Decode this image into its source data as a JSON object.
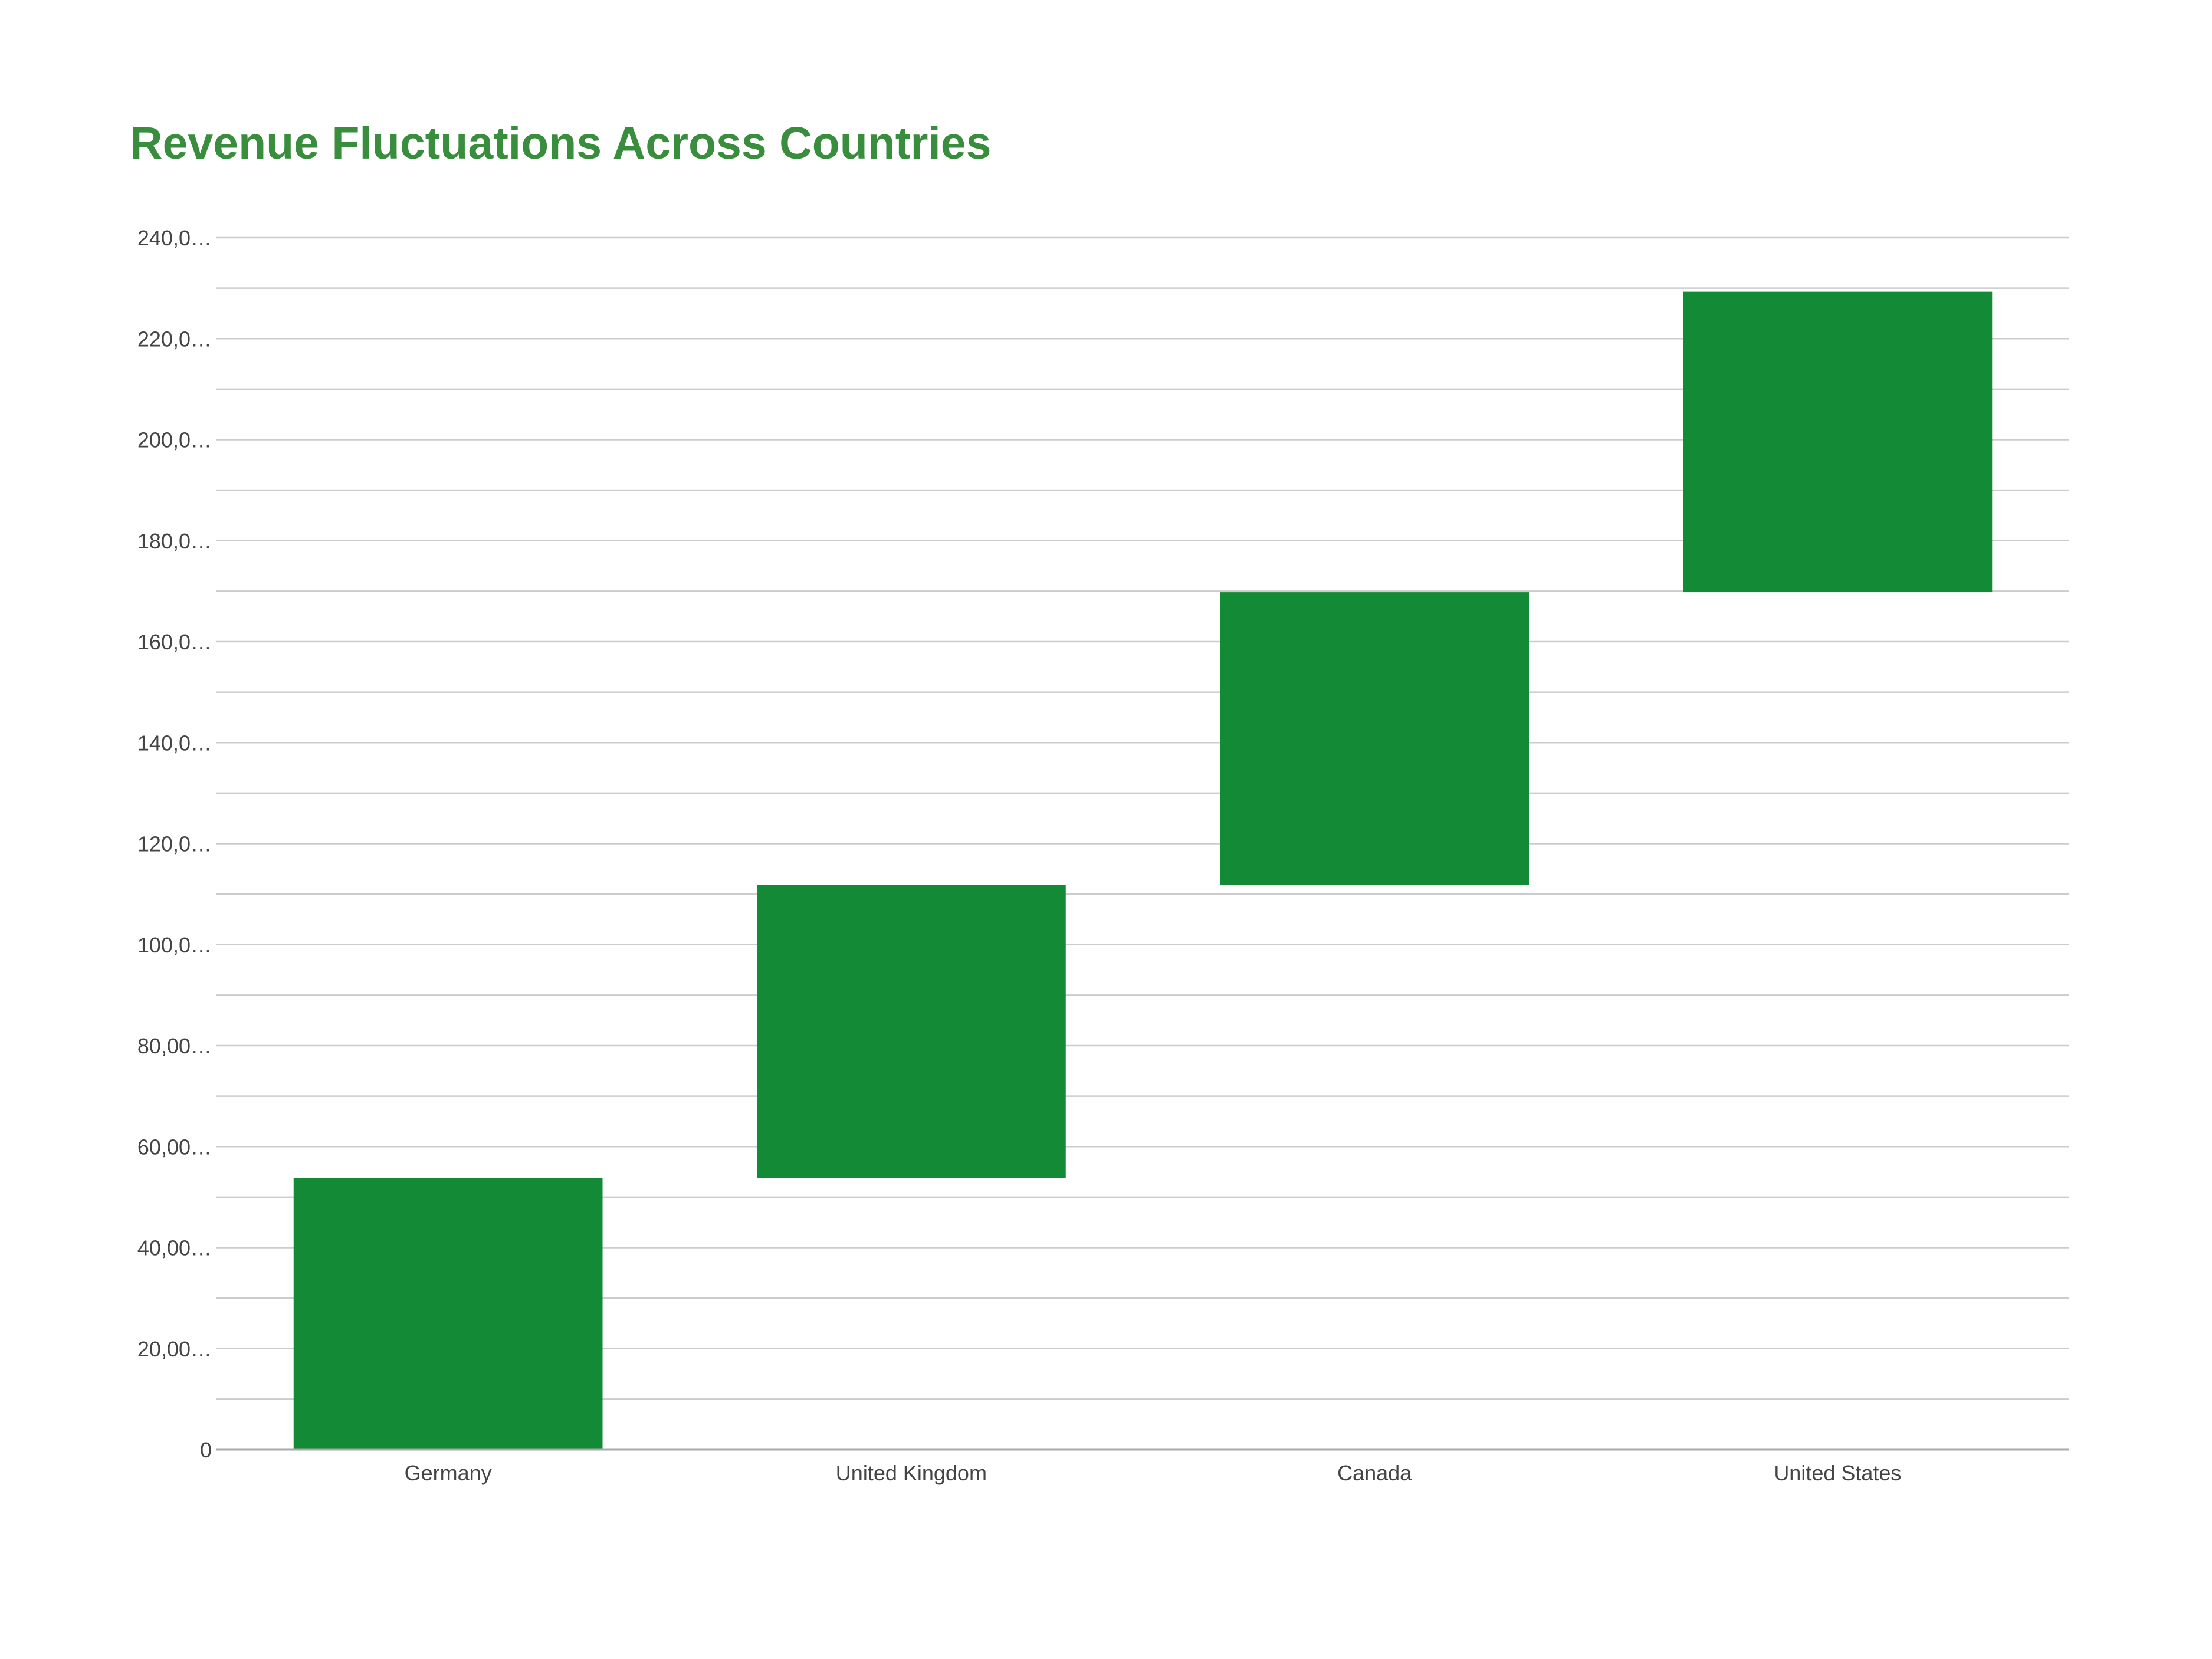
{
  "chart_data": {
    "type": "bar",
    "subtype": "waterfall",
    "title": "Revenue Fluctuations Across Countries",
    "xlabel": "",
    "ylabel": "",
    "categories": [
      "Germany",
      "United Kingdom",
      "Canada",
      "United States"
    ],
    "series": [
      {
        "values": [
          53800,
          58000,
          58000,
          59500
        ],
        "base": [
          0,
          53800,
          111800,
          169800
        ],
        "end": [
          53800,
          111800,
          169800,
          229300
        ]
      }
    ],
    "ylim": [
      0,
      240000
    ],
    "yticks": [
      0,
      20000,
      40000,
      60000,
      80000,
      100000,
      120000,
      140000,
      160000,
      180000,
      200000,
      220000,
      240000
    ],
    "ytick_labels": [
      "0",
      "20,00…",
      "40,00…",
      "60,00…",
      "80,00…",
      "100,0…",
      "120,0…",
      "140,0…",
      "160,0…",
      "180,0…",
      "200,0…",
      "220,0…",
      "240,0…"
    ],
    "grid": true,
    "legend": "none",
    "colors": {
      "bar": "#138a36",
      "title": "#388e3c",
      "grid": "#cccccc",
      "axis": "#aaaaaa"
    }
  }
}
